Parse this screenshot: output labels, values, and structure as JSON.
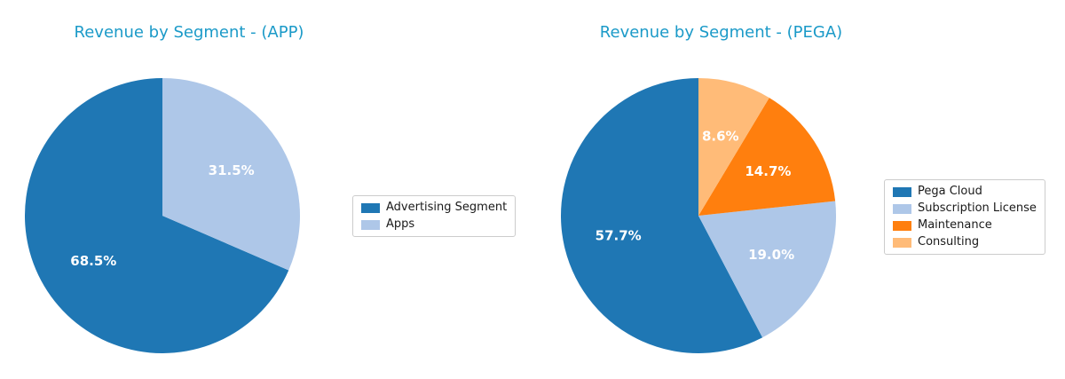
{
  "styles": {
    "title_color": "#1b9ac8",
    "percent_label_color": "#ffffff",
    "legend_border_color": "#cccccc",
    "background_color": "#ffffff"
  },
  "chart_data": [
    {
      "type": "pie",
      "title": "Revenue by Segment - (APP)",
      "labels": [
        "Advertising Segment",
        "Apps"
      ],
      "values": [
        68.5,
        31.5
      ],
      "value_labels": [
        "68.5%",
        "31.5%"
      ],
      "colors": [
        "#1f77b4",
        "#aec7e8"
      ],
      "start_angle": 90,
      "counterclockwise": true,
      "label_distance": 0.6,
      "legend_position": "center right outside"
    },
    {
      "type": "pie",
      "title": "Revenue by Segment - (PEGA)",
      "labels": [
        "Pega Cloud",
        "Subscription License",
        "Maintenance",
        "Consulting"
      ],
      "values": [
        57.7,
        19.0,
        14.7,
        8.6
      ],
      "value_labels": [
        "57.7%",
        "19.0%",
        "14.7%",
        "8.6%"
      ],
      "colors": [
        "#1f77b4",
        "#aec7e8",
        "#ff7f0e",
        "#ffbb78"
      ],
      "start_angle": 90,
      "counterclockwise": true,
      "label_distance": 0.6,
      "legend_position": "center right outside"
    }
  ]
}
